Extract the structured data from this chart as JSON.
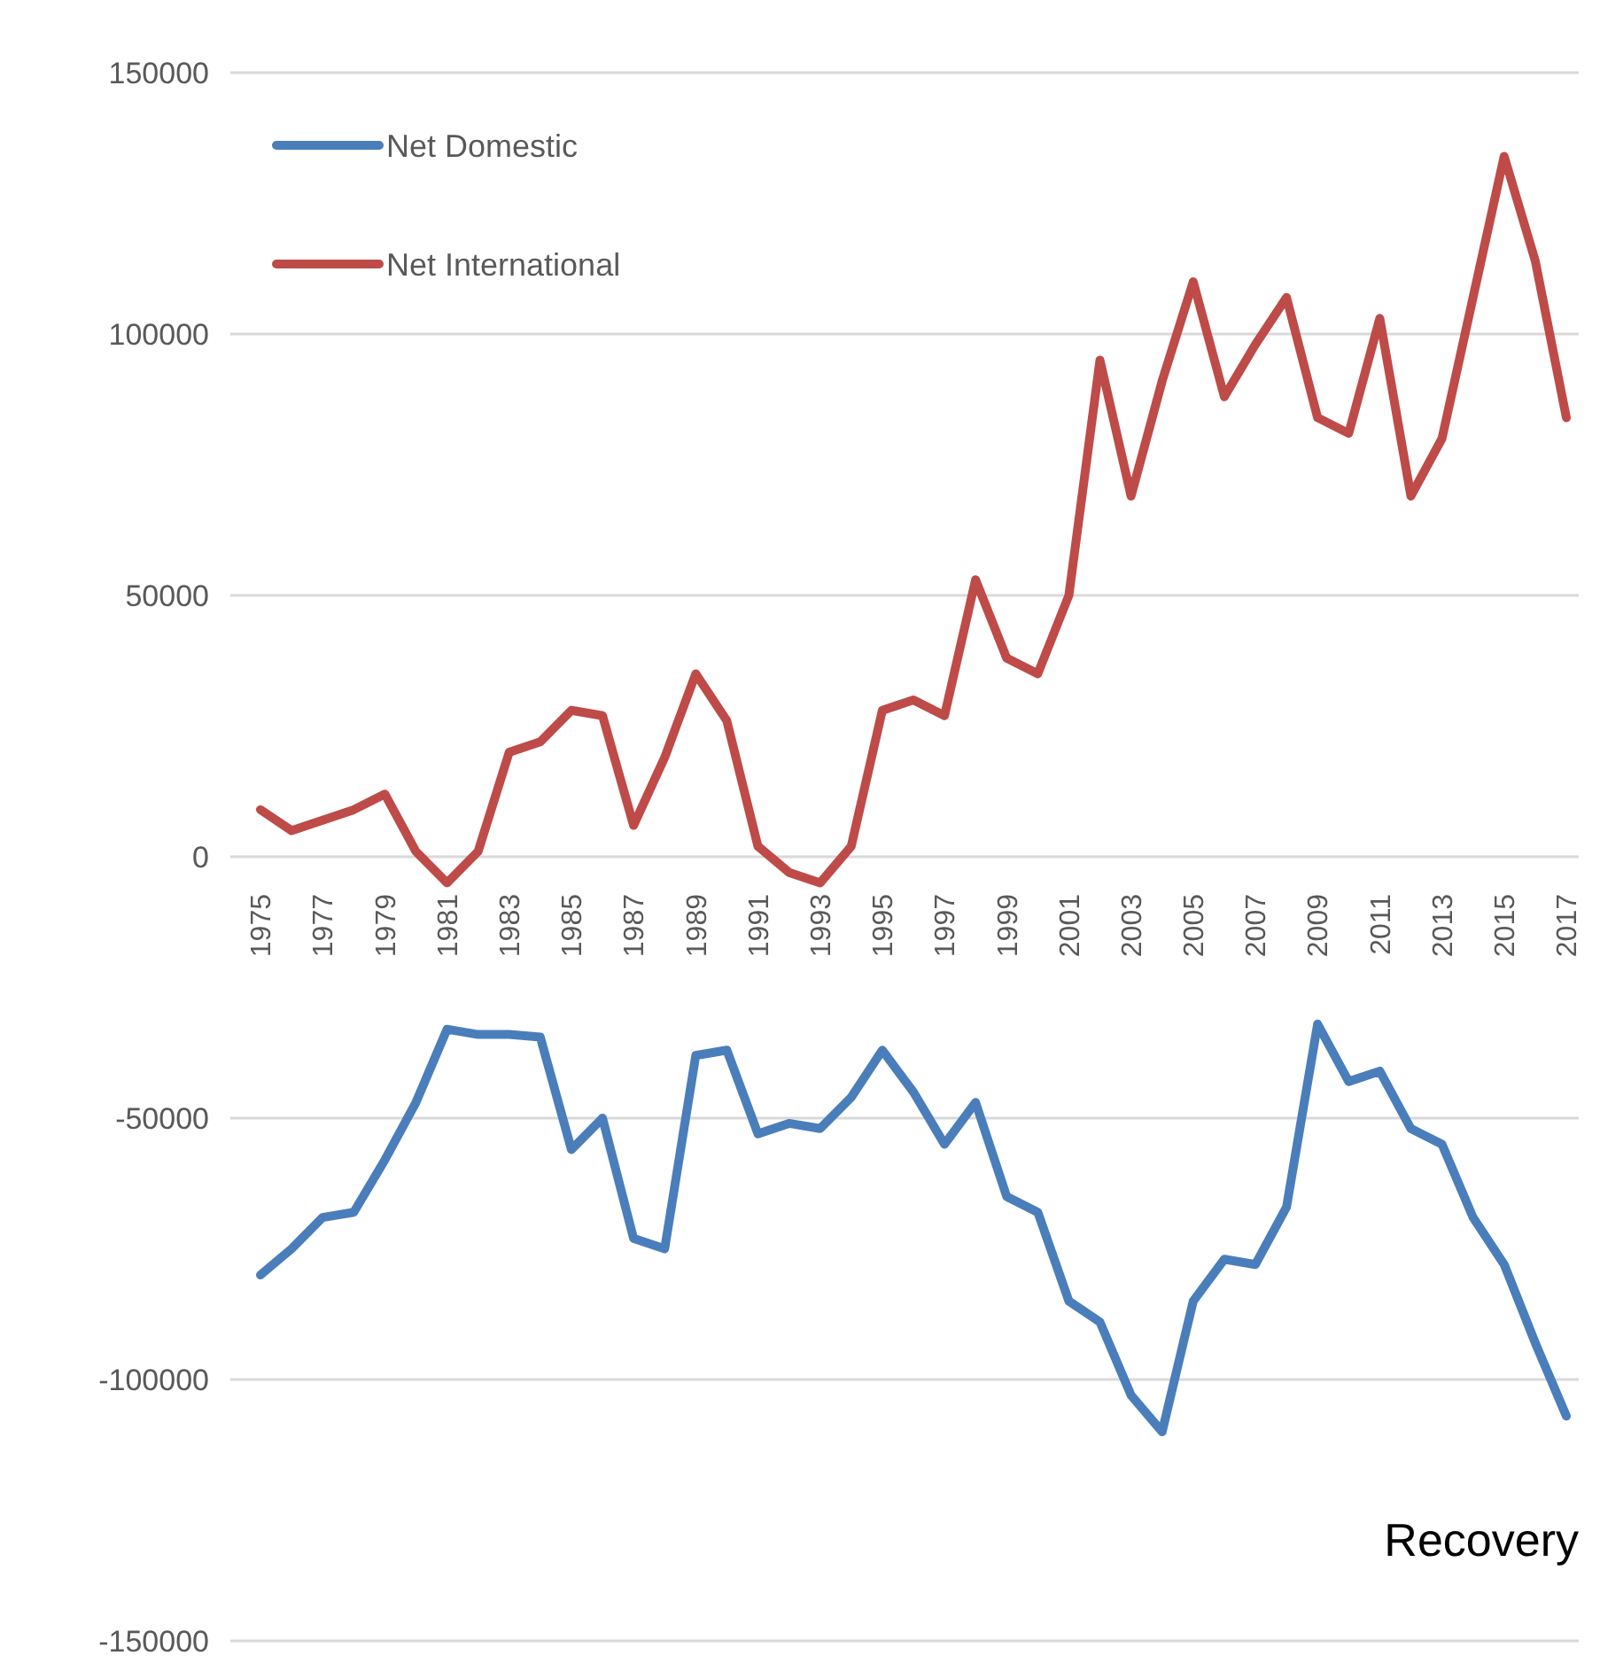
{
  "chart_data": {
    "type": "line",
    "categories": [
      "1975",
      null,
      "1977",
      null,
      "1979",
      null,
      "1981",
      null,
      "1983",
      null,
      "1985",
      null,
      "1987",
      null,
      "1989",
      null,
      "1991",
      null,
      "1993",
      null,
      "1995",
      null,
      "1997",
      null,
      "1999",
      null,
      "2001",
      null,
      "2003",
      null,
      "2005",
      null,
      "2007",
      null,
      "2009",
      null,
      "2011",
      null,
      "2013",
      null,
      "2015",
      null,
      "2017"
    ],
    "series": [
      {
        "name": "Net Domestic",
        "color": "#4a7ebb",
        "values": [
          -80000,
          -75000,
          -69000,
          -68000,
          -58000,
          -47000,
          -33000,
          -34000,
          -34000,
          -34500,
          -56000,
          -50000,
          -73000,
          -75000,
          -38000,
          -37000,
          -53000,
          -51000,
          -52000,
          -46000,
          -37000,
          -45000,
          -55000,
          -47000,
          -65000,
          -68000,
          -85000,
          -89000,
          -103000,
          -110000,
          -85000,
          -77000,
          -78000,
          -67000,
          -32000,
          -43000,
          -41000,
          -52000,
          -55000,
          -69000,
          -78000,
          -93000,
          -107000
        ]
      },
      {
        "name": "Net International",
        "color": "#be4b48",
        "values": [
          9000,
          5000,
          7000,
          9000,
          12000,
          1000,
          -5000,
          1000,
          20000,
          22000,
          28000,
          27000,
          6000,
          19000,
          35000,
          26000,
          2000,
          -3000,
          -5000,
          2000,
          28000,
          30000,
          27000,
          53000,
          38000,
          35000,
          50000,
          95000,
          69000,
          91000,
          110000,
          88000,
          98000,
          107000,
          84000,
          81000,
          103000,
          69000,
          80000,
          107000,
          134000,
          114000,
          84000
        ]
      }
    ],
    "ylim": [
      -150000,
      150000
    ],
    "yticks": [
      -150000,
      -100000,
      -50000,
      0,
      50000,
      100000,
      150000
    ],
    "grid": "y",
    "legend": "top left",
    "line_style": "solid",
    "marker": "none",
    "annotations": [
      "Recovery"
    ]
  }
}
